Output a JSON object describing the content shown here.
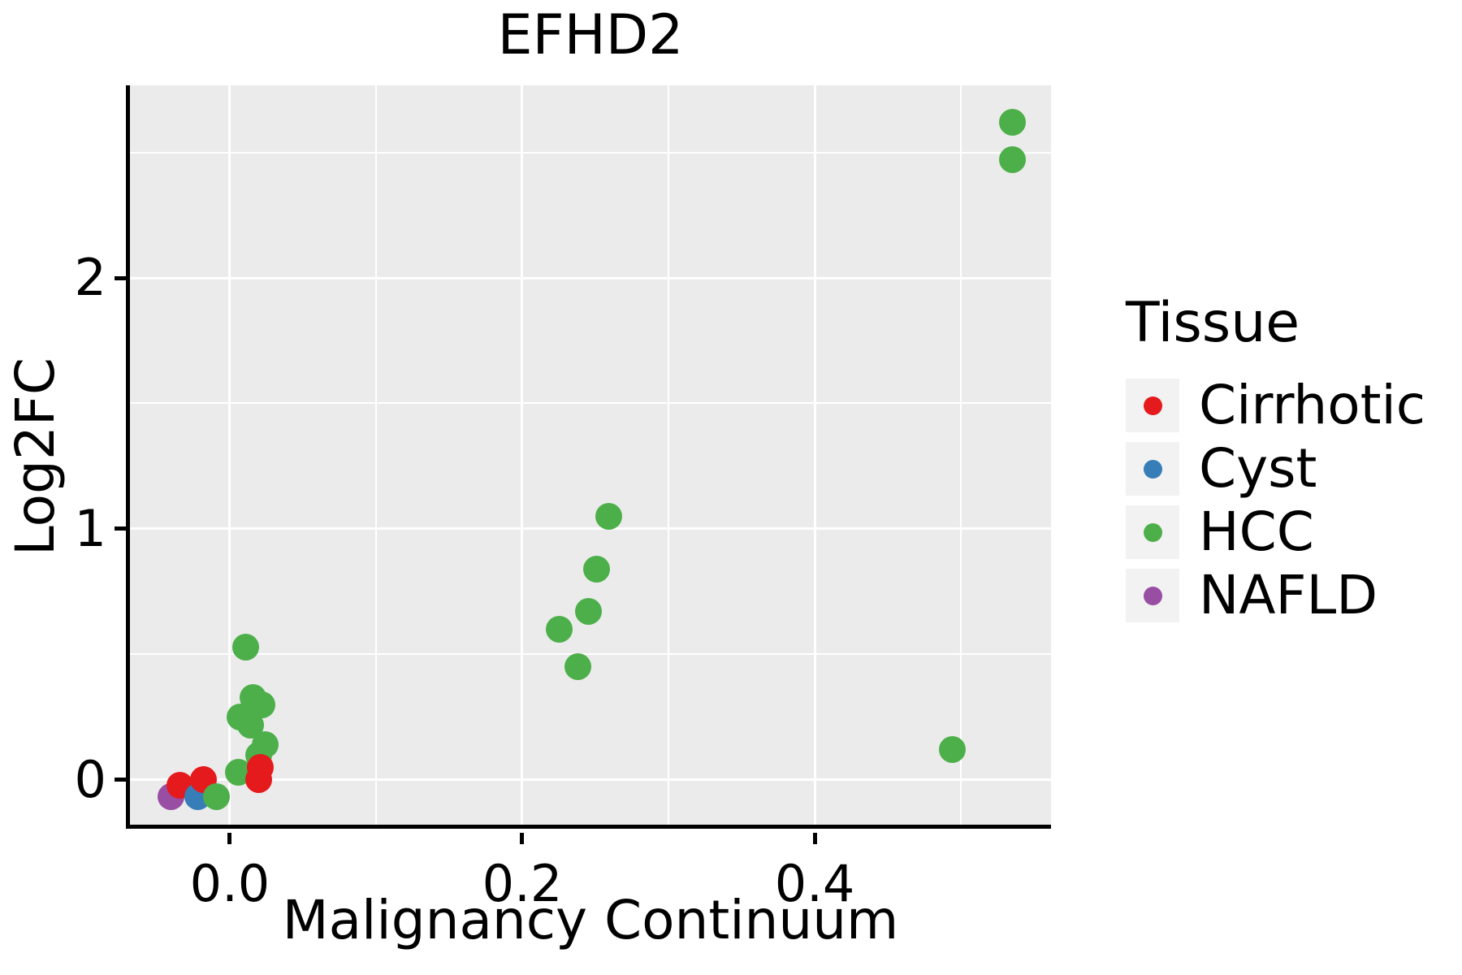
{
  "figure": {
    "title": "EFHD2",
    "x_axis": {
      "label": "Malignancy Continuum",
      "tick_labels": [
        "0.0",
        "0.2",
        "0.4"
      ],
      "major_ticks": [
        0.0,
        0.2,
        0.4
      ],
      "minor_ticks": [
        0.1,
        0.3,
        0.5
      ],
      "range": [
        -0.0683,
        0.5644
      ]
    },
    "y_axis": {
      "label": "Log2FC",
      "tick_labels": [
        "0",
        "1",
        "2"
      ],
      "major_ticks": [
        0,
        1,
        2
      ],
      "minor_ticks": [
        0.5,
        1.5,
        2.5
      ],
      "range": [
        -0.1942,
        2.767
      ]
    },
    "legend": {
      "title": "Tissue",
      "entries": [
        {
          "label": "Cirrhotic",
          "color": "#E41A1C"
        },
        {
          "label": "Cyst",
          "color": "#377EB8"
        },
        {
          "label": "HCC",
          "color": "#4DAF4A"
        },
        {
          "label": "NAFLD",
          "color": "#984EA3"
        }
      ]
    },
    "colors": {
      "panel_background": "#EBEBEB",
      "gridline": "#FFFFFF",
      "axis": "#000000",
      "legend_key": "#F2F2F2"
    }
  },
  "chart_data": {
    "type": "scatter",
    "title": "EFHD2",
    "xlabel": "Malignancy Continuum",
    "ylabel": "Log2FC",
    "xlim": [
      -0.0683,
      0.5644
    ],
    "ylim": [
      -0.1942,
      2.767
    ],
    "grid": true,
    "legend_position": "right",
    "legend_title": "Tissue",
    "series": [
      {
        "name": "Cirrhotic",
        "color": "#E41A1C",
        "points": [
          [
            -0.034,
            -0.02
          ],
          [
            -0.018,
            0.0
          ],
          [
            0.021,
            0.05
          ],
          [
            0.02,
            0.0
          ]
        ]
      },
      {
        "name": "Cyst",
        "color": "#377EB8",
        "points": [
          [
            -0.022,
            -0.067
          ]
        ]
      },
      {
        "name": "HCC",
        "color": "#4DAF4A",
        "points": [
          [
            -0.009,
            -0.067
          ],
          [
            0.006,
            0.03
          ],
          [
            0.011,
            0.53
          ],
          [
            0.016,
            0.33
          ],
          [
            0.022,
            0.3
          ],
          [
            0.007,
            0.25
          ],
          [
            0.014,
            0.22
          ],
          [
            0.024,
            0.14
          ],
          [
            0.02,
            0.1
          ],
          [
            0.225,
            0.6
          ],
          [
            0.238,
            0.45
          ],
          [
            0.245,
            0.67
          ],
          [
            0.251,
            0.84
          ],
          [
            0.259,
            1.05
          ],
          [
            0.494,
            0.12
          ],
          [
            0.535,
            2.62
          ],
          [
            0.535,
            2.47
          ]
        ]
      },
      {
        "name": "NAFLD",
        "color": "#984EA3",
        "points": [
          [
            -0.04,
            -0.065
          ]
        ]
      }
    ],
    "points_draw_order": [
      {
        "x": -0.04,
        "y": -0.065,
        "tissue": "NAFLD"
      },
      {
        "x": -0.034,
        "y": -0.02,
        "tissue": "Cirrhotic"
      },
      {
        "x": -0.022,
        "y": -0.067,
        "tissue": "Cyst"
      },
      {
        "x": -0.018,
        "y": 0.0,
        "tissue": "Cirrhotic"
      },
      {
        "x": -0.009,
        "y": -0.067,
        "tissue": "HCC"
      },
      {
        "x": 0.006,
        "y": 0.03,
        "tissue": "HCC"
      },
      {
        "x": 0.011,
        "y": 0.53,
        "tissue": "HCC"
      },
      {
        "x": 0.016,
        "y": 0.33,
        "tissue": "HCC"
      },
      {
        "x": 0.022,
        "y": 0.3,
        "tissue": "HCC"
      },
      {
        "x": 0.007,
        "y": 0.25,
        "tissue": "HCC"
      },
      {
        "x": 0.014,
        "y": 0.22,
        "tissue": "HCC"
      },
      {
        "x": 0.024,
        "y": 0.14,
        "tissue": "HCC"
      },
      {
        "x": 0.02,
        "y": 0.1,
        "tissue": "HCC"
      },
      {
        "x": 0.021,
        "y": 0.05,
        "tissue": "Cirrhotic"
      },
      {
        "x": 0.02,
        "y": 0.0,
        "tissue": "Cirrhotic"
      },
      {
        "x": 0.225,
        "y": 0.6,
        "tissue": "HCC"
      },
      {
        "x": 0.238,
        "y": 0.45,
        "tissue": "HCC"
      },
      {
        "x": 0.245,
        "y": 0.67,
        "tissue": "HCC"
      },
      {
        "x": 0.251,
        "y": 0.84,
        "tissue": "HCC"
      },
      {
        "x": 0.259,
        "y": 1.05,
        "tissue": "HCC"
      },
      {
        "x": 0.494,
        "y": 0.12,
        "tissue": "HCC"
      },
      {
        "x": 0.535,
        "y": 2.62,
        "tissue": "HCC"
      },
      {
        "x": 0.535,
        "y": 2.47,
        "tissue": "HCC"
      }
    ]
  }
}
